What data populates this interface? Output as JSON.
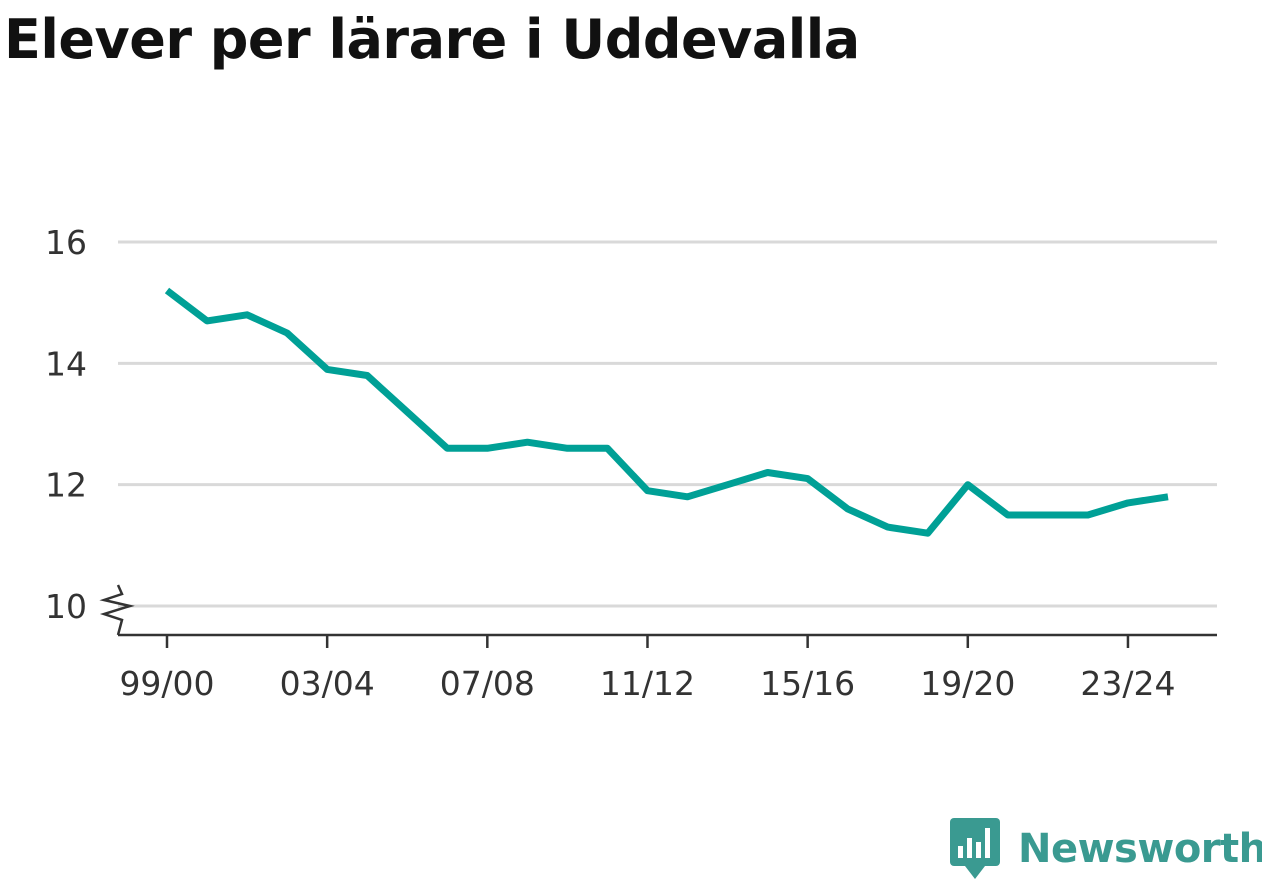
{
  "title": "Elever per lärare i Uddevalla",
  "brand": {
    "name": "Newsworthy"
  },
  "colors": {
    "line": "#00a096",
    "grid": "#d9d9d9",
    "axis": "#333333",
    "brand": "#3a9a91"
  },
  "chart_data": {
    "type": "line",
    "title": "Elever per lärare i Uddevalla",
    "xlabel": "",
    "ylabel": "",
    "ylim": [
      10,
      16
    ],
    "y_axis_break": true,
    "yticks": [
      10,
      12,
      14,
      16
    ],
    "grid": true,
    "categories": [
      "99/00",
      "00/01",
      "01/02",
      "02/03",
      "03/04",
      "04/05",
      "05/06",
      "06/07",
      "07/08",
      "08/09",
      "09/10",
      "10/11",
      "11/12",
      "12/13",
      "13/14",
      "14/15",
      "15/16",
      "16/17",
      "17/18",
      "18/19",
      "19/20",
      "20/21",
      "21/22",
      "22/23",
      "23/24",
      "24/25"
    ],
    "xtick_labels": [
      "99/00",
      "03/04",
      "07/08",
      "11/12",
      "15/16",
      "19/20",
      "23/24"
    ],
    "series": [
      {
        "values": [
          15.2,
          14.7,
          14.8,
          14.5,
          13.9,
          13.8,
          13.2,
          12.6,
          12.6,
          12.7,
          12.6,
          12.6,
          11.9,
          11.8,
          12.0,
          12.2,
          12.1,
          11.6,
          11.3,
          11.2,
          12.0,
          11.5,
          11.5,
          11.5,
          11.7,
          11.8
        ]
      }
    ]
  }
}
